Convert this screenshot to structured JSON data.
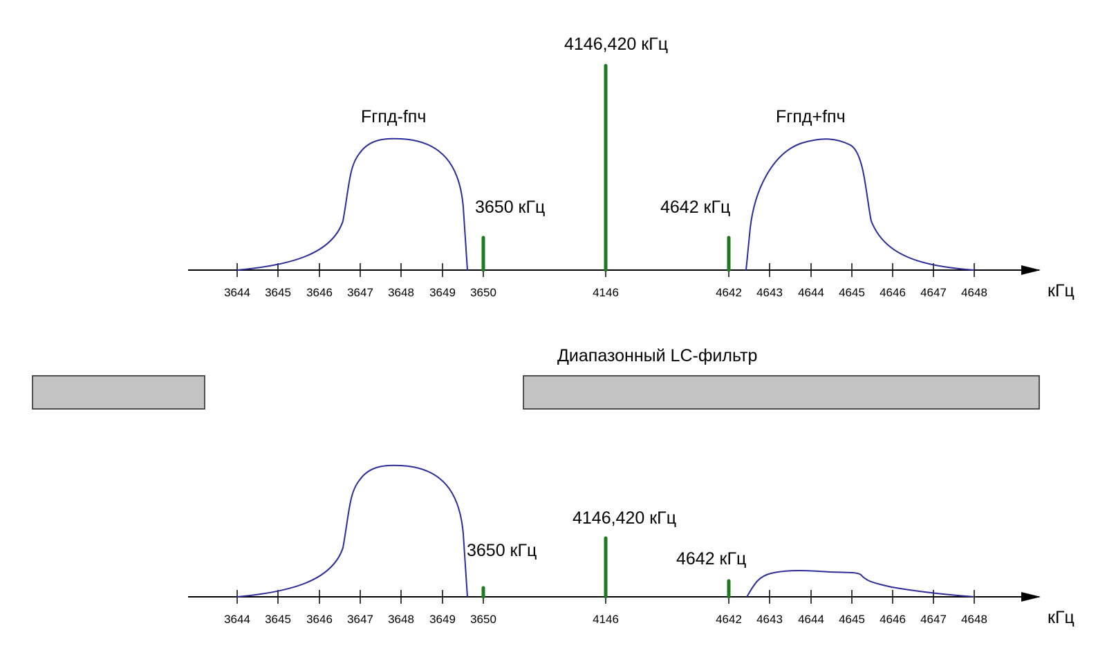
{
  "top": {
    "ticks": [
      "3644",
      "3645",
      "3646",
      "3647",
      "3648",
      "3649",
      "3650",
      "4146",
      "4642",
      "4643",
      "4644",
      "4645",
      "4646",
      "4647",
      "4648"
    ],
    "unit": "кГц",
    "lower_band_label": "Fгпд-fпч",
    "upper_band_label": "Fгпд+fпч",
    "center_label": "4146,420 кГц",
    "left_marker_label": "3650 кГц",
    "right_marker_label": "4642 кГц",
    "marker_levels": {
      "left": 0.17,
      "center": 1.0,
      "right": 0.17
    },
    "envelope_levels": {
      "lower_peak": 0.64,
      "upper_peak": 0.64
    }
  },
  "filter": {
    "label": "Диапазонный LC-фильтр",
    "color": "#c4c4c4"
  },
  "bottom": {
    "ticks": [
      "3644",
      "3645",
      "3646",
      "3647",
      "3648",
      "3649",
      "3650",
      "4146",
      "4642",
      "4643",
      "4644",
      "4645",
      "4646",
      "4647",
      "4648"
    ],
    "unit": "кГц",
    "center_label": "4146,420 кГц",
    "left_marker_label": "3650 кГц",
    "right_marker_label": "4642 кГц",
    "marker_levels": {
      "left": 0.05,
      "center": 0.29,
      "right": 0.08
    },
    "envelope_levels": {
      "lower_peak": 0.64,
      "upper_peak": 0.13
    }
  },
  "colors": {
    "carrier": "#1f7a1f",
    "envelope": "#2b2b9a",
    "axis": "#000000"
  }
}
